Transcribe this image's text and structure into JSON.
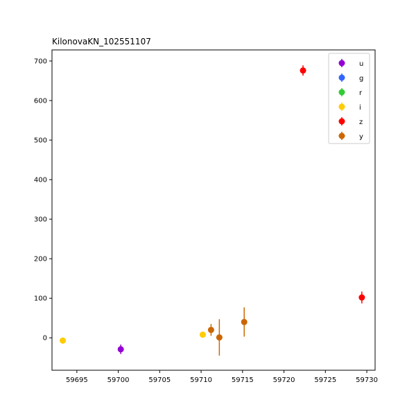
{
  "chart_data": {
    "type": "scatter",
    "title": "KilonovaKN_102551107",
    "xlabel": "",
    "ylabel": "",
    "xlim": [
      59692,
      59731
    ],
    "ylim": [
      -82,
      728
    ],
    "xticks": [
      59695,
      59700,
      59705,
      59710,
      59715,
      59720,
      59725,
      59730
    ],
    "yticks": [
      0,
      100,
      200,
      300,
      400,
      500,
      600,
      700
    ],
    "grid": false,
    "legend_placement": "top-right",
    "series": [
      {
        "name": "u",
        "color": "#9400d3",
        "points": [
          {
            "x": 59700.3,
            "y": -29,
            "err": 12
          }
        ]
      },
      {
        "name": "g",
        "color": "#3366ff",
        "points": []
      },
      {
        "name": "r",
        "color": "#33cc33",
        "points": []
      },
      {
        "name": "i",
        "color": "#ffcc00",
        "points": [
          {
            "x": 59693.3,
            "y": -7,
            "err": 4
          },
          {
            "x": 59710.2,
            "y": 8,
            "err": 4
          }
        ]
      },
      {
        "name": "z",
        "color": "#ff0000",
        "points": [
          {
            "x": 59722.3,
            "y": 676,
            "err": 13
          },
          {
            "x": 59729.4,
            "y": 102,
            "err": 15
          }
        ]
      },
      {
        "name": "y",
        "color": "#cc6600",
        "points": [
          {
            "x": 59711.2,
            "y": 20,
            "err": 15
          },
          {
            "x": 59712.2,
            "y": 1,
            "err": 46
          },
          {
            "x": 59715.2,
            "y": 40,
            "err": 37
          }
        ]
      }
    ]
  }
}
